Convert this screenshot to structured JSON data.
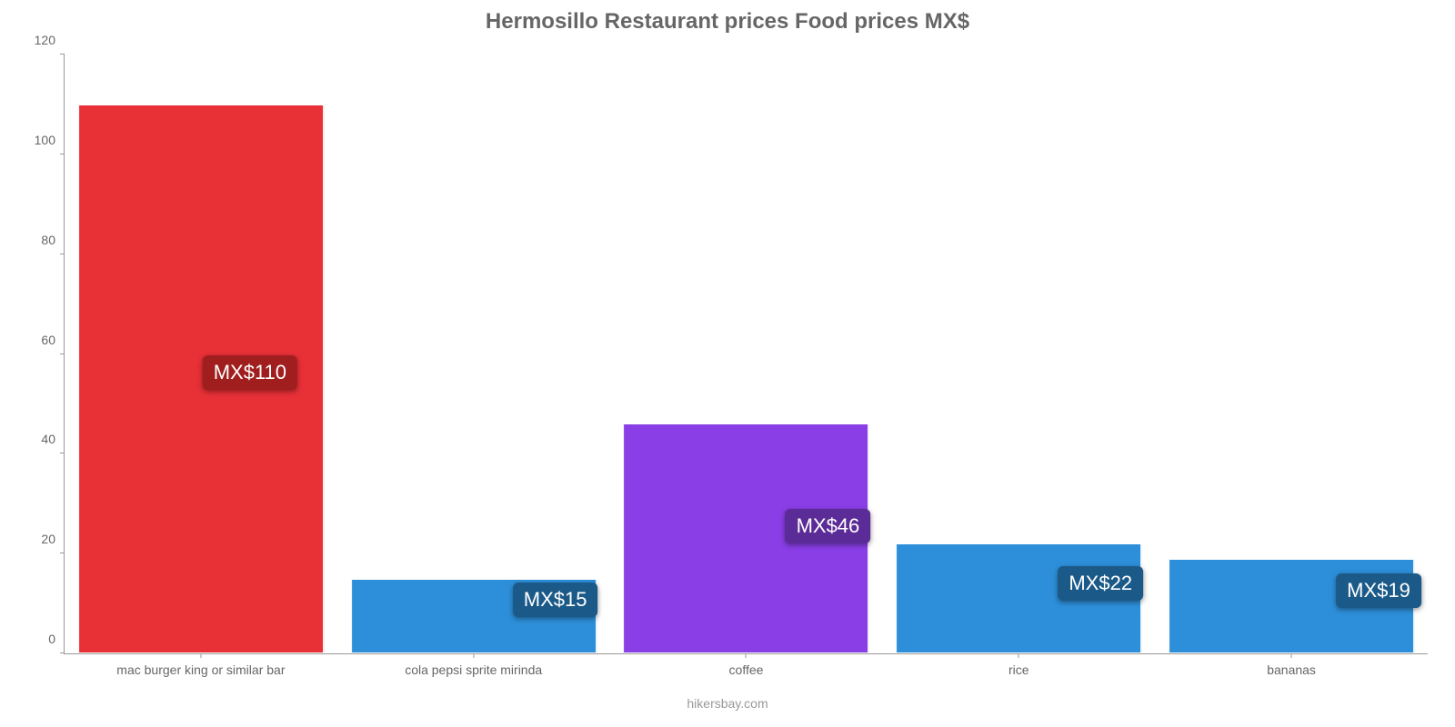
{
  "chart": {
    "type": "bar",
    "title": "Hermosillo Restaurant prices Food prices MX$",
    "title_fontsize": 24,
    "title_color": "#666666",
    "background_color": "#ffffff",
    "axis_color": "#999999",
    "tick_label_color": "#666666",
    "tick_fontsize": 14,
    "ylim": [
      0,
      120
    ],
    "ytick_step": 20,
    "bar_width_ratio": 0.9,
    "badge_fontsize": 22,
    "caption": "hikersbay.com",
    "caption_color": "#999999",
    "categories": [
      {
        "label": "mac burger king or similar bar",
        "value": 110,
        "value_label": "MX$110",
        "bar_color": "#e83037",
        "badge_bg": "#a01e1e",
        "badge_left_ratio": 0.68
      },
      {
        "label": "cola pepsi sprite mirinda",
        "value": 15,
        "value_label": "MX$15",
        "bar_color": "#2d8fd9",
        "badge_bg": "#1b5a88",
        "badge_left_ratio": 0.8
      },
      {
        "label": "coffee",
        "value": 46,
        "value_label": "MX$46",
        "bar_color": "#8a3ee6",
        "badge_bg": "#5b2b97",
        "badge_left_ratio": 0.8
      },
      {
        "label": "rice",
        "value": 22,
        "value_label": "MX$22",
        "bar_color": "#2d8fd9",
        "badge_bg": "#1b5a88",
        "badge_left_ratio": 0.8
      },
      {
        "label": "bananas",
        "value": 19,
        "value_label": "MX$19",
        "bar_color": "#2d8fd9",
        "badge_bg": "#1b5a88",
        "badge_left_ratio": 0.82
      }
    ]
  }
}
